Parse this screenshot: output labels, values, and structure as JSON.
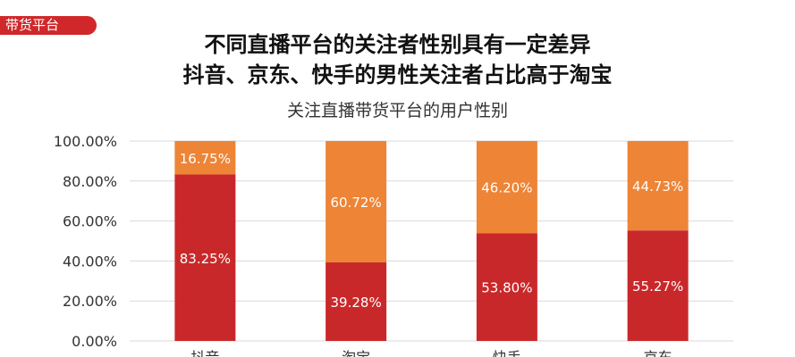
{
  "header": {
    "tag": "带货平台",
    "headline_line1": "不同直播平台的关注者性别具有一定差异",
    "headline_line2": "抖音、京东、快手的男性关注者占比高于淘宝"
  },
  "chart_data": {
    "type": "bar",
    "stacked": true,
    "title": "关注直播带货平台的用户性别",
    "categories": [
      "抖音",
      "淘宝",
      "快手",
      "京东"
    ],
    "series": [
      {
        "color": "#c9282a",
        "values": [
          83.25,
          39.28,
          53.8,
          55.27
        ],
        "labels": [
          "83.25%",
          "39.28%",
          "53.80%",
          "55.27%"
        ]
      },
      {
        "color": "#ed8436",
        "values": [
          16.75,
          60.72,
          46.2,
          44.73
        ],
        "labels": [
          "16.75%",
          "60.72%",
          "46.20%",
          "44.73%"
        ]
      }
    ],
    "ylim": [
      0,
      100
    ],
    "yticks": [
      "0.00%",
      "20.00%",
      "40.00%",
      "60.00%",
      "80.00%",
      "100.00%"
    ],
    "grid": true
  }
}
